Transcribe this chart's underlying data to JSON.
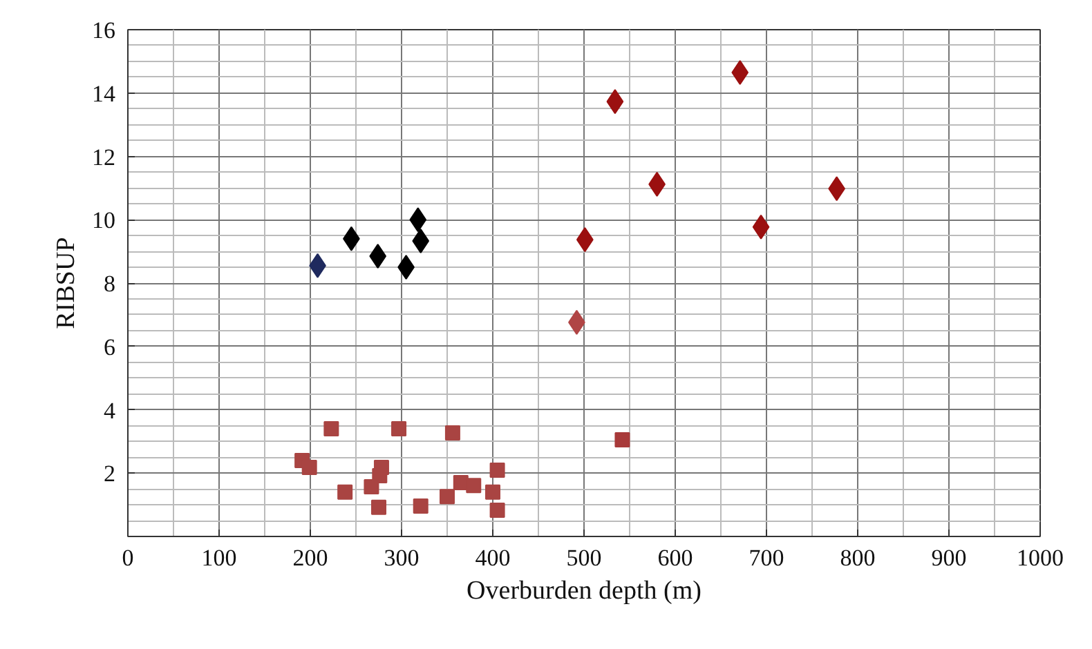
{
  "chart_data": {
    "type": "scatter",
    "xlabel": "Overburden depth (m)",
    "ylabel": "RIBSUP",
    "xlim": [
      0,
      1000
    ],
    "ylim": [
      0,
      16
    ],
    "xticks": [
      0,
      100,
      200,
      300,
      400,
      500,
      600,
      700,
      800,
      900,
      1000
    ],
    "yticks": [
      {
        "value": 0,
        "label": null
      },
      2,
      4,
      6,
      8,
      10,
      12,
      14,
      16
    ],
    "grid": true,
    "series": [
      {
        "color": "#000000",
        "marker": "diamond",
        "x": [
          245,
          274,
          305,
          318,
          321
        ],
        "values": [
          9.4,
          8.85,
          8.5,
          10.0,
          9.33
        ]
      },
      {
        "color": "#1f2a5e",
        "marker": "diamond",
        "x": [
          208
        ],
        "values": [
          8.55
        ]
      },
      {
        "color": "#9b1010",
        "marker": "diamond",
        "x": [
          671,
          534,
          580,
          777,
          694,
          501
        ],
        "values": [
          14.65,
          13.73,
          11.12,
          10.98,
          9.77,
          9.37
        ]
      },
      {
        "color": "#b04545",
        "marker": "diamond",
        "x": [
          492
        ],
        "values": [
          6.76
        ]
      },
      {
        "color": "#a94442",
        "marker": "square",
        "x": [
          223,
          297,
          356,
          191,
          199,
          278,
          276,
          267,
          238,
          275,
          321,
          350,
          365,
          379,
          405,
          400,
          405
        ],
        "values": [
          3.4,
          3.4,
          3.27,
          2.4,
          2.18,
          2.18,
          1.92,
          1.57,
          1.4,
          0.92,
          0.96,
          1.26,
          1.7,
          1.61,
          2.09,
          1.4,
          0.83
        ]
      },
      {
        "color": "#a83a3a",
        "marker": "square",
        "x": [
          542
        ],
        "values": [
          3.05
        ]
      }
    ]
  }
}
